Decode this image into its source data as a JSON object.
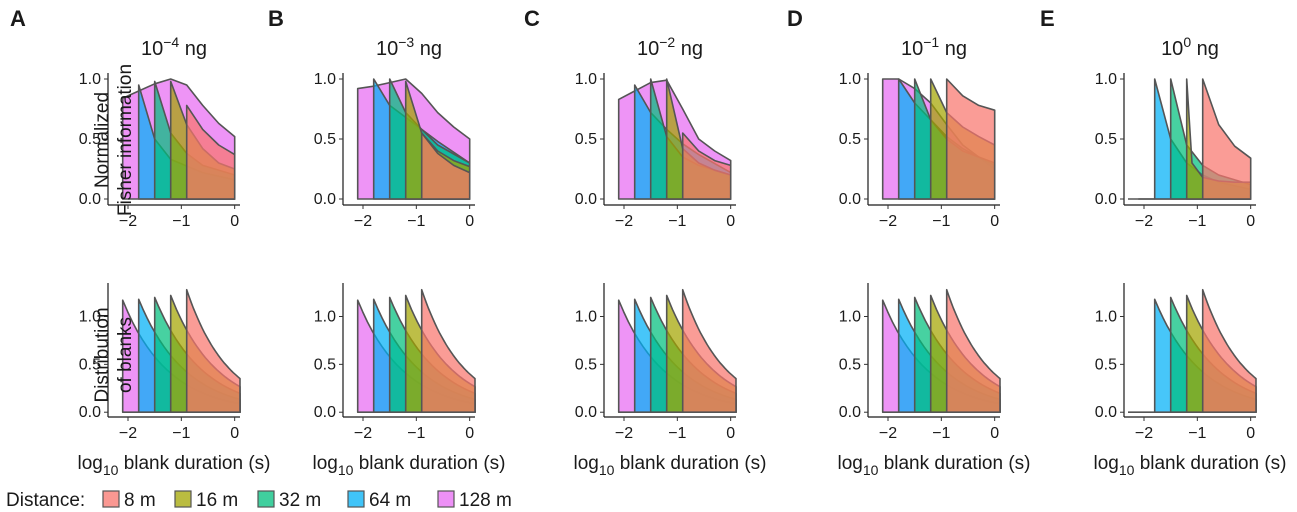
{
  "figure": {
    "panel_letters": [
      "A",
      "B",
      "C",
      "D",
      "E"
    ],
    "panel_titles": [
      {
        "base": "10",
        "exp": "−4",
        "unit": "ng"
      },
      {
        "base": "10",
        "exp": "−3",
        "unit": "ng"
      },
      {
        "base": "10",
        "exp": "−2",
        "unit": "ng"
      },
      {
        "base": "10",
        "exp": "−1",
        "unit": "ng"
      },
      {
        "base": "10",
        "exp": "0",
        "unit": "ng"
      }
    ],
    "row_labels": {
      "top": [
        "Normalized",
        "Fisher information"
      ],
      "bottom": [
        "Distribution",
        "of blanks"
      ]
    },
    "x_axis_title": {
      "prefix": "log",
      "subscript": "10",
      "rest": " blank duration (s)"
    },
    "x_ticks": [
      "−2",
      "−1",
      "0"
    ],
    "top_y_ticks": [
      "0.0",
      "0.5",
      "1.0"
    ],
    "bottom_y_ticks": [
      "0.0",
      "0.5",
      "1.0"
    ],
    "legend": {
      "title": "Distance:",
      "items": [
        {
          "label": "8 m",
          "color": "#F8766D"
        },
        {
          "label": "16 m",
          "color": "#A3A500"
        },
        {
          "label": "32 m",
          "color": "#00BF7D"
        },
        {
          "label": "64 m",
          "color": "#00B0F6"
        },
        {
          "label": "128 m",
          "color": "#E76BF3"
        }
      ]
    }
  },
  "chart_data": {
    "type": "area",
    "description_layout": "2 rows x 5 columns of small multiples, overlapping filled areas per distance",
    "x_range": [
      -2.3,
      0.1
    ],
    "top_ylim": [
      -0.05,
      1.05
    ],
    "bottom_ylim": [
      -0.05,
      1.35
    ],
    "series_order": [
      "8 m",
      "16 m",
      "32 m",
      "64 m",
      "128 m"
    ],
    "cutoffs_log10_s": {
      "8 m": -0.9,
      "16 m": -1.2,
      "32 m": -1.5,
      "64 m": -1.8,
      "128 m": -2.1
    },
    "blank_distribution": {
      "peaks": {
        "8 m": 1.28,
        "16 m": 1.22,
        "32 m": 1.2,
        "64 m": 1.18,
        "128 m": 1.17
      },
      "value_at_0": {
        "8 m": 0.4,
        "16 m": 0.3,
        "32 m": 0.22,
        "64 m": 0.15,
        "128 m": 0.1
      }
    },
    "fisher_information": [
      {
        "panel": "10^-4 ng",
        "series": [
          {
            "name": "8 m",
            "x": [
              -0.9,
              -0.6,
              -0.3,
              0.0
            ],
            "y": [
              0.78,
              0.58,
              0.45,
              0.37
            ]
          },
          {
            "name": "16 m",
            "x": [
              -1.2,
              -0.9,
              -0.6,
              -0.3,
              0.0
            ],
            "y": [
              0.98,
              0.62,
              0.42,
              0.3,
              0.25
            ]
          },
          {
            "name": "32 m",
            "x": [
              -1.5,
              -1.2,
              -0.9,
              -0.6,
              0.0
            ],
            "y": [
              0.98,
              0.55,
              0.38,
              0.28,
              0.2
            ]
          },
          {
            "name": "64 m",
            "x": [
              -1.8,
              -1.5,
              -1.2,
              -0.6,
              0.0
            ],
            "y": [
              0.95,
              0.5,
              0.33,
              0.22,
              0.16
            ]
          },
          {
            "name": "128 m",
            "x": [
              -2.1,
              -1.8,
              -1.5,
              -1.2,
              -0.9,
              -0.6,
              -0.3,
              0.0
            ],
            "y": [
              0.84,
              0.9,
              0.96,
              1.0,
              0.95,
              0.78,
              0.63,
              0.52
            ]
          }
        ]
      },
      {
        "panel": "10^-3 ng",
        "series": [
          {
            "name": "8 m",
            "x": [
              -0.9,
              -0.6,
              -0.3,
              0.0
            ],
            "y": [
              0.55,
              0.38,
              0.28,
              0.22
            ]
          },
          {
            "name": "16 m",
            "x": [
              -1.2,
              -0.9,
              -0.6,
              -0.3,
              0.0
            ],
            "y": [
              0.98,
              0.55,
              0.4,
              0.32,
              0.27
            ]
          },
          {
            "name": "32 m",
            "x": [
              -1.5,
              -1.2,
              -0.9,
              -0.6,
              0.0
            ],
            "y": [
              1.0,
              0.72,
              0.58,
              0.45,
              0.3
            ]
          },
          {
            "name": "64 m",
            "x": [
              -1.8,
              -1.5,
              -1.2,
              -0.9,
              -0.6,
              0.0
            ],
            "y": [
              1.0,
              0.78,
              0.68,
              0.58,
              0.48,
              0.3
            ]
          },
          {
            "name": "128 m",
            "x": [
              -2.1,
              -1.8,
              -1.5,
              -1.2,
              -0.9,
              -0.6,
              -0.3,
              0.0
            ],
            "y": [
              0.92,
              0.94,
              0.97,
              1.0,
              0.88,
              0.72,
              0.6,
              0.5
            ]
          }
        ]
      },
      {
        "panel": "10^-2 ng",
        "series": [
          {
            "name": "8 m",
            "x": [
              -0.9,
              -0.6,
              -0.3,
              0.0
            ],
            "y": [
              0.55,
              0.4,
              0.32,
              0.28
            ]
          },
          {
            "name": "16 m",
            "x": [
              -1.2,
              -0.9,
              -0.6,
              -0.3,
              0.0
            ],
            "y": [
              1.0,
              0.42,
              0.3,
              0.24,
              0.2
            ]
          },
          {
            "name": "32 m",
            "x": [
              -1.5,
              -1.2,
              -0.9,
              -0.6,
              0.0
            ],
            "y": [
              1.0,
              0.52,
              0.35,
              0.28,
              0.2
            ]
          },
          {
            "name": "64 m",
            "x": [
              -1.8,
              -1.5,
              -1.2,
              -0.9,
              -0.6,
              0.0
            ],
            "y": [
              0.95,
              0.72,
              0.58,
              0.46,
              0.37,
              0.22
            ]
          },
          {
            "name": "128 m",
            "x": [
              -2.1,
              -1.8,
              -1.5,
              -1.2,
              -0.9,
              -0.6,
              -0.3,
              0.0
            ],
            "y": [
              0.83,
              0.9,
              0.97,
              0.99,
              0.75,
              0.5,
              0.4,
              0.32
            ]
          }
        ]
      },
      {
        "panel": "10^-1 ng",
        "series": [
          {
            "name": "8 m",
            "x": [
              -0.9,
              -0.6,
              -0.3,
              0.0
            ],
            "y": [
              1.0,
              0.86,
              0.78,
              0.74
            ]
          },
          {
            "name": "16 m",
            "x": [
              -1.2,
              -0.9,
              -0.6,
              -0.3,
              0.0
            ],
            "y": [
              1.0,
              0.72,
              0.6,
              0.52,
              0.45
            ]
          },
          {
            "name": "32 m",
            "x": [
              -1.5,
              -1.2,
              -0.9,
              -0.6,
              0.0
            ],
            "y": [
              1.0,
              0.66,
              0.5,
              0.4,
              0.3
            ]
          },
          {
            "name": "64 m",
            "x": [
              -1.8,
              -1.5,
              -1.2,
              -0.9,
              -0.6,
              0.0
            ],
            "y": [
              1.0,
              0.8,
              0.66,
              0.52,
              0.42,
              0.28
            ]
          },
          {
            "name": "128 m",
            "x": [
              -2.1,
              -1.8,
              -1.5,
              -1.2,
              -0.9,
              -0.6,
              0.0
            ],
            "y": [
              1.0,
              1.0,
              0.92,
              0.8,
              0.62,
              0.45,
              0.25
            ]
          }
        ]
      },
      {
        "panel": "10^0 ng",
        "series": [
          {
            "name": "8 m",
            "x": [
              -0.9,
              -0.6,
              -0.3,
              0.0
            ],
            "y": [
              1.0,
              0.62,
              0.44,
              0.34
            ]
          },
          {
            "name": "16 m",
            "x": [
              -1.2,
              -1.1,
              -0.9,
              -0.6,
              -0.3,
              0.0
            ],
            "y": [
              1.0,
              0.3,
              0.18,
              0.15,
              0.14,
              0.14
            ]
          },
          {
            "name": "32 m",
            "x": [
              -1.5,
              -1.2,
              -0.9,
              -0.6,
              0.0
            ],
            "y": [
              1.0,
              0.45,
              0.28,
              0.2,
              0.12
            ]
          },
          {
            "name": "64 m",
            "x": [
              -1.8,
              -1.5,
              -1.2,
              -0.9,
              -0.6,
              0.0
            ],
            "y": [
              1.0,
              0.5,
              0.3,
              0.2,
              0.14,
              0.08
            ]
          },
          {
            "name": "128 m",
            "x": [
              -2.1,
              -1.8,
              0.0
            ],
            "y": [
              0.0,
              0.0,
              0.0
            ]
          }
        ]
      }
    ]
  }
}
